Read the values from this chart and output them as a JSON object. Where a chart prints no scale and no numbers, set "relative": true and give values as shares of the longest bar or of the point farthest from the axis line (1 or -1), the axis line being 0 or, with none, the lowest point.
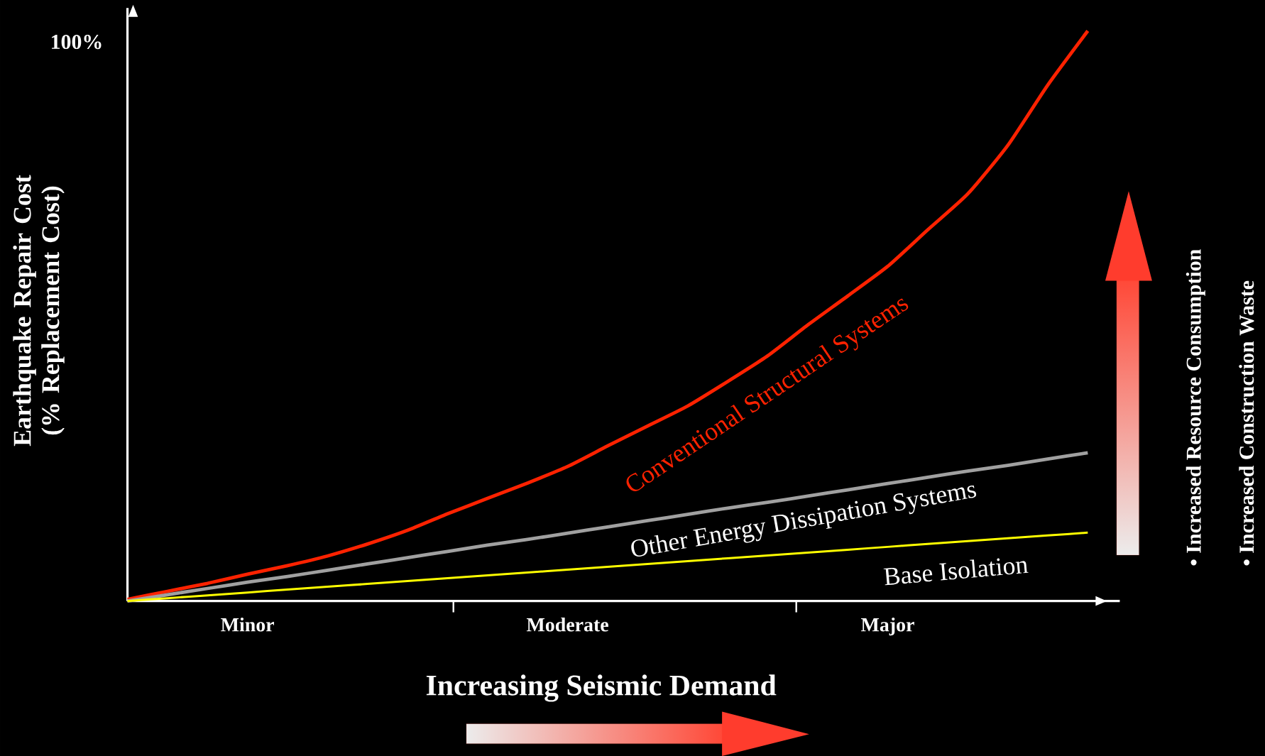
{
  "chart_data": {
    "type": "line",
    "xlabel": "Increasing Seismic Demand",
    "ylabel": "Earthquake Repair Cost (% Replacement Cost)",
    "relative": true,
    "categories": [
      null,
      null,
      null,
      "Minor",
      null,
      null,
      null,
      null,
      null,
      null,
      null,
      "Moderate",
      null,
      null,
      null,
      null,
      null,
      null,
      null,
      "Major",
      null,
      null,
      null,
      null,
      null
    ],
    "annotations": [
      "100%",
      "• Increased Resource Consumption",
      "• Increased Construction Waste"
    ],
    "series": [
      {
        "name": "Conventional Structural Systems",
        "color": "#ff2200",
        "values": [
          0.003,
          0.017,
          0.031,
          0.047,
          0.062,
          0.079,
          0.1,
          0.124,
          0.153,
          0.18,
          0.207,
          0.236,
          0.272,
          0.307,
          0.342,
          0.385,
          0.43,
          0.484,
          0.535,
          0.587,
          0.651,
          0.714,
          0.799,
          0.905,
          1.0
        ]
      },
      {
        "name": "Other Energy Dissipation Systems",
        "color": "#a0a0a0",
        "values": [
          0,
          0.011,
          0.022,
          0.033,
          0.043,
          0.054,
          0.065,
          0.076,
          0.087,
          0.098,
          0.108,
          0.119,
          0.13,
          0.141,
          0.152,
          0.163,
          0.173,
          0.184,
          0.195,
          0.206,
          0.217,
          0.228,
          0.238,
          0.249,
          0.26
        ]
      },
      {
        "name": "Base Isolation",
        "color": "#ffff00",
        "values": [
          0,
          0.005,
          0.01,
          0.015,
          0.02,
          0.025,
          0.03,
          0.035,
          0.04,
          0.045,
          0.05,
          0.055,
          0.06,
          0.065,
          0.07,
          0.075,
          0.08,
          0.085,
          0.09,
          0.095,
          0.1,
          0.105,
          0.11,
          0.115,
          0.12
        ]
      }
    ]
  }
}
